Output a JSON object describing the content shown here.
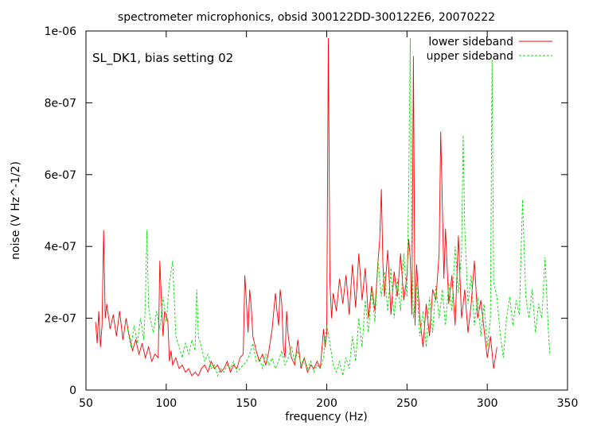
{
  "chart_data": {
    "type": "line",
    "title": "spectrometer microphonics, obsid 300122DD-300122E6, 20070222",
    "xlabel": "frequency (Hz)",
    "ylabel": "noise (V Hz^-1/2)",
    "xlim": [
      50,
      350
    ],
    "ylim": [
      0,
      1e-06
    ],
    "x_ticks": [
      50,
      100,
      150,
      200,
      250,
      300,
      350
    ],
    "x_tick_labels": [
      "50",
      "100",
      "150",
      "200",
      "250",
      "300",
      "350"
    ],
    "y_ticks": [
      0,
      2e-07,
      4e-07,
      6e-07,
      8e-07,
      1e-06
    ],
    "y_tick_labels": [
      "0",
      "2e-07",
      "4e-07",
      "6e-07",
      "8e-07",
      "1e-06"
    ],
    "grid": false,
    "legend_position": "top-right",
    "annotation": "SL_DK1, bias setting 02",
    "series": [
      {
        "name": "lower sideband",
        "color": "#ff0000",
        "dash": "solid",
        "x": [
          56,
          57,
          58,
          59,
          60,
          61,
          62,
          63,
          65,
          67,
          69,
          71,
          73,
          75,
          77,
          79,
          81,
          83,
          85,
          87,
          89,
          91,
          93,
          95,
          96,
          97,
          98,
          99,
          100,
          101,
          102,
          103,
          104,
          106,
          108,
          110,
          112,
          114,
          116,
          118,
          120,
          122,
          124,
          126,
          128,
          130,
          132,
          134,
          136,
          138,
          140,
          142,
          144,
          146,
          148,
          149,
          150,
          151,
          152,
          153,
          154,
          156,
          158,
          160,
          162,
          164,
          166,
          168,
          169,
          170,
          171,
          172,
          173,
          174,
          175,
          176,
          178,
          180,
          182,
          184,
          186,
          188,
          190,
          192,
          194,
          196,
          198,
          199,
          200,
          201,
          202,
          203,
          204,
          206,
          208,
          210,
          212,
          214,
          216,
          218,
          220,
          222,
          224,
          226,
          228,
          230,
          232,
          233,
          234,
          235,
          236,
          238,
          240,
          242,
          244,
          246,
          248,
          250,
          251,
          252,
          253,
          254,
          255,
          256,
          258,
          260,
          262,
          264,
          266,
          268,
          270,
          271,
          272,
          273,
          274,
          276,
          278,
          280,
          282,
          284,
          286,
          288,
          290,
          292,
          294,
          296,
          298,
          300,
          302,
          304,
          306
        ],
        "y": [
          1.9e-07,
          1.3e-07,
          2.2e-07,
          1.2e-07,
          1.8e-07,
          4.45e-07,
          2e-07,
          2.4e-07,
          1.7e-07,
          2.1e-07,
          1.5e-07,
          2.2e-07,
          1.4e-07,
          2e-07,
          1.5e-07,
          1.1e-07,
          1.4e-07,
          1e-07,
          1.3e-07,
          9e-08,
          1.2e-07,
          8e-08,
          1e-07,
          9e-08,
          3.6e-07,
          2.5e-07,
          1.5e-07,
          2.2e-07,
          2.1e-07,
          1.9e-07,
          8e-08,
          1.1e-07,
          7e-08,
          9e-08,
          6e-08,
          7e-08,
          5e-08,
          6e-08,
          4e-08,
          5e-08,
          4e-08,
          6e-08,
          7e-08,
          5e-08,
          8e-08,
          6e-08,
          7e-08,
          5e-08,
          6e-08,
          8e-08,
          5e-08,
          7e-08,
          6e-08,
          9e-08,
          1e-07,
          3.2e-07,
          2.4e-07,
          1.6e-07,
          2.8e-07,
          2.3e-07,
          1.5e-07,
          1.1e-07,
          8e-08,
          1e-07,
          7e-08,
          1.1e-07,
          1.7e-07,
          2.7e-07,
          2.2e-07,
          1.8e-07,
          2.8e-07,
          2.4e-07,
          1.2e-07,
          9e-08,
          2.2e-07,
          1.5e-07,
          9e-08,
          7e-08,
          1.4e-07,
          6e-08,
          9e-08,
          5e-08,
          7e-08,
          6e-08,
          8e-08,
          6e-08,
          1.7e-07,
          1.2e-07,
          1.6e-07,
          9.8e-07,
          3e-07,
          2e-07,
          2.7e-07,
          2.2e-07,
          3.1e-07,
          2.4e-07,
          3.2e-07,
          2.1e-07,
          3.5e-07,
          2.3e-07,
          3.8e-07,
          2.5e-07,
          3.4e-07,
          2e-07,
          2.9e-07,
          2.2e-07,
          3.6e-07,
          4.2e-07,
          5.6e-07,
          3.5e-07,
          2.6e-07,
          3.9e-07,
          2.1e-07,
          3.3e-07,
          2.6e-07,
          3.8e-07,
          2.5e-07,
          3.2e-07,
          4.2e-07,
          3.7e-07,
          2.1e-07,
          9.3e-07,
          1.8e-07,
          3.5e-07,
          2e-07,
          1.2e-07,
          2.4e-07,
          1.5e-07,
          2.8e-07,
          2.5e-07,
          3.8e-07,
          7.2e-07,
          5.2e-07,
          3.1e-07,
          4.5e-07,
          2.4e-07,
          3.2e-07,
          1.8e-07,
          4.3e-07,
          2e-07,
          2.8e-07,
          1.6e-07,
          2.4e-07,
          3.6e-07,
          2e-07,
          2.5e-07,
          1.7e-07,
          9e-08,
          1.5e-07,
          6e-08,
          1.2e-07
        ]
      },
      {
        "name": "upper sideband",
        "color": "#00dd00",
        "dash": "dashed",
        "x": [
          76,
          78,
          80,
          82,
          84,
          86,
          87,
          88,
          89,
          90,
          92,
          94,
          96,
          98,
          100,
          102,
          104,
          106,
          108,
          110,
          112,
          114,
          116,
          118,
          119,
          120,
          122,
          124,
          126,
          128,
          130,
          132,
          134,
          136,
          138,
          140,
          142,
          144,
          146,
          148,
          150,
          152,
          154,
          156,
          158,
          160,
          162,
          164,
          166,
          168,
          170,
          172,
          174,
          176,
          178,
          180,
          182,
          184,
          186,
          188,
          190,
          192,
          194,
          196,
          198,
          200,
          202,
          204,
          206,
          208,
          210,
          212,
          214,
          216,
          218,
          220,
          222,
          224,
          226,
          228,
          230,
          232,
          234,
          236,
          238,
          240,
          242,
          244,
          246,
          248,
          250,
          251,
          252,
          253,
          254,
          256,
          258,
          260,
          262,
          264,
          266,
          268,
          270,
          272,
          274,
          276,
          278,
          280,
          282,
          284,
          285,
          286,
          288,
          290,
          292,
          294,
          296,
          298,
          300,
          302,
          303,
          304,
          306,
          308,
          310,
          312,
          314,
          316,
          318,
          320,
          322,
          324,
          326,
          328,
          330,
          332,
          334,
          336,
          338,
          339
        ],
        "y": [
          1.7e-07,
          1.2e-07,
          1.8e-07,
          1.3e-07,
          2e-07,
          1.4e-07,
          2.4e-07,
          4.45e-07,
          2.3e-07,
          2e-07,
          1.6e-07,
          2.2e-07,
          1.7e-07,
          2.6e-07,
          1.9e-07,
          3e-07,
          3.6e-07,
          1.5e-07,
          1.2e-07,
          9e-08,
          1.3e-07,
          1e-07,
          1.4e-07,
          1.1e-07,
          2.8e-07,
          1.5e-07,
          1.2e-07,
          8e-08,
          1e-07,
          6e-08,
          7e-08,
          4e-08,
          6e-08,
          5e-08,
          7e-08,
          6e-08,
          8e-08,
          5e-08,
          6e-08,
          7e-08,
          8e-08,
          1e-07,
          1.3e-07,
          8e-08,
          9e-08,
          6e-08,
          1e-07,
          7e-08,
          9e-08,
          6e-08,
          8e-08,
          1.1e-07,
          7e-08,
          9e-08,
          1.2e-07,
          8e-08,
          1.1e-07,
          7e-08,
          9e-08,
          6e-08,
          8e-08,
          5e-08,
          7e-08,
          6e-08,
          9e-08,
          1.8e-07,
          1.3e-07,
          7e-08,
          5e-08,
          8e-08,
          4e-08,
          9e-08,
          6e-08,
          1.5e-07,
          8e-08,
          2e-07,
          1.2e-07,
          2.5e-07,
          1.6e-07,
          2.8e-07,
          1.9e-07,
          3.6e-07,
          2.6e-07,
          3.3e-07,
          2.2e-07,
          3.4e-07,
          2e-07,
          3.1e-07,
          2.2e-07,
          3.8e-07,
          2.6e-07,
          5.5e-07,
          9.8e-07,
          4e-07,
          2e-07,
          3e-07,
          1.5e-07,
          2.2e-07,
          1.2e-07,
          2.6e-07,
          1.6e-07,
          2.9e-07,
          2e-07,
          2.8e-07,
          1.8e-07,
          3e-07,
          2.2e-07,
          4e-07,
          2.7e-07,
          3.8e-07,
          7.1e-07,
          4.5e-07,
          2.4e-07,
          3.2e-07,
          1.8e-07,
          2.6e-07,
          1.5e-07,
          2.4e-07,
          1.2e-07,
          2e-07,
          9.2e-07,
          3e-07,
          2.6e-07,
          1.6e-07,
          9e-08,
          2e-07,
          2.6e-07,
          1.8e-07,
          2.5e-07,
          2.1e-07,
          5.3e-07,
          2.6e-07,
          2e-07,
          2.8e-07,
          1.6e-07,
          2.4e-07,
          2e-07,
          3.7e-07,
          1.7e-07,
          1e-07
        ]
      }
    ]
  }
}
